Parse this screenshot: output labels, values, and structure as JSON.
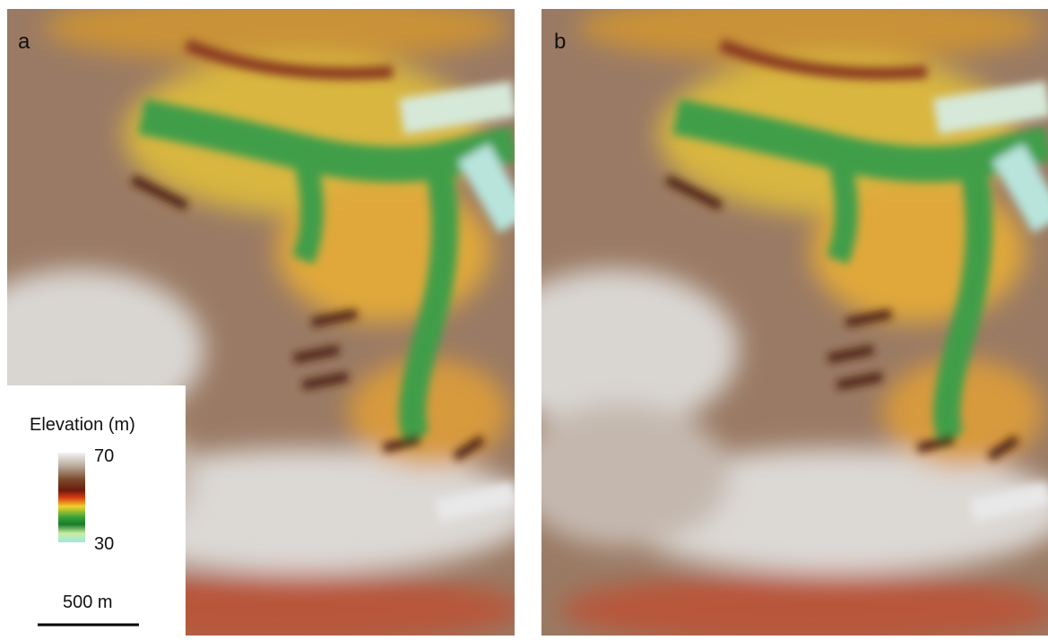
{
  "panels": [
    {
      "label": "a"
    },
    {
      "label": "b"
    }
  ],
  "legend": {
    "title": "Elevation (m)",
    "max": 70,
    "min": 30
  },
  "scale_bar": {
    "label": "500 m"
  }
}
